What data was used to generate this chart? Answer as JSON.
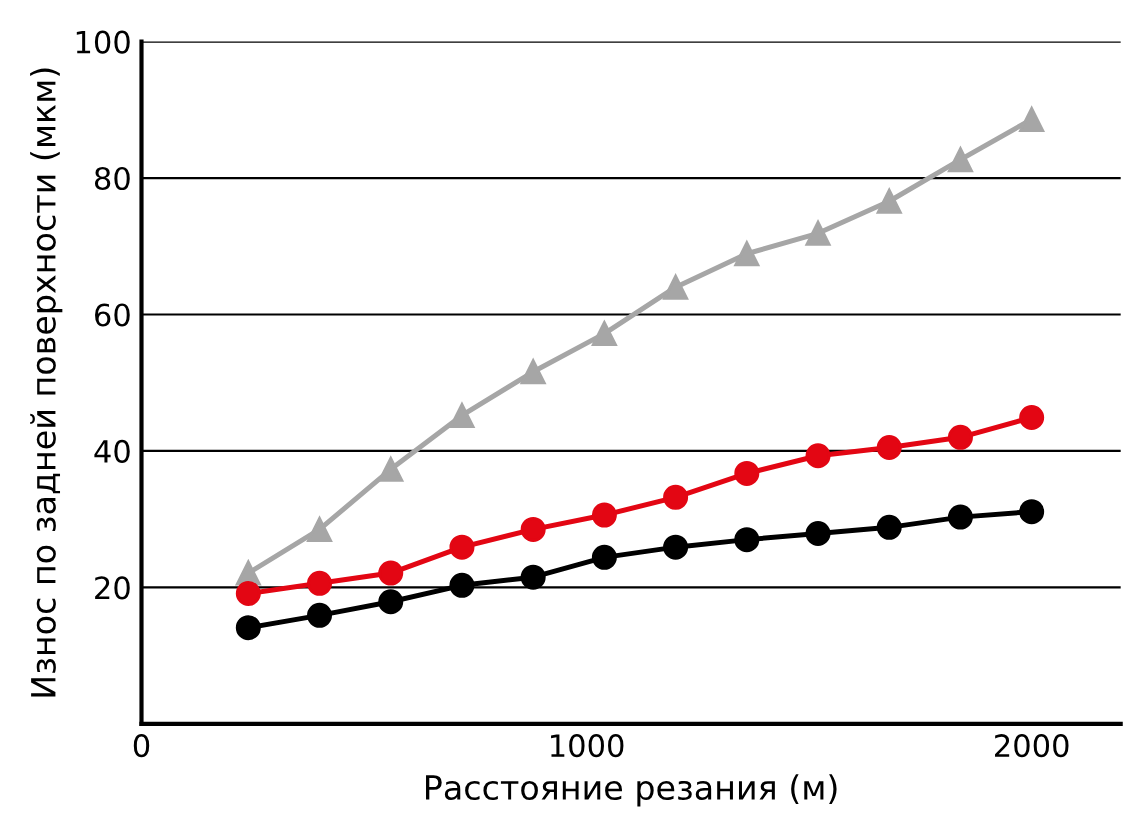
{
  "chart_data": {
    "type": "line",
    "xlabel": "Расстояние резания (м)",
    "ylabel": "Износ по задней поверхности (мкм)",
    "x": [
      240,
      400,
      560,
      720,
      880,
      1040,
      1200,
      1360,
      1520,
      1680,
      1840,
      2000
    ],
    "series": [
      {
        "color": "#a6a6a6",
        "marker": "triangle",
        "values": [
          22.1,
          28.5,
          37.3,
          45.2,
          51.6,
          57.2,
          64.0,
          68.9,
          71.9,
          76.6,
          82.7,
          88.6
        ]
      },
      {
        "color": "#e30613",
        "marker": "circle",
        "values": [
          19.1,
          20.6,
          22.1,
          25.9,
          28.5,
          30.6,
          33.2,
          36.7,
          39.3,
          40.5,
          42.0,
          44.9
        ]
      },
      {
        "color": "#000000",
        "marker": "circle",
        "values": [
          14.1,
          15.9,
          17.9,
          20.3,
          21.5,
          24.4,
          25.9,
          27.0,
          27.9,
          28.8,
          30.3,
          31.1
        ]
      }
    ],
    "xlim": [
      0,
      2200
    ],
    "xticks": [
      0,
      1000,
      2000
    ],
    "ylim": [
      0,
      100
    ],
    "yticks": [
      {
        "value": 0,
        "label": null
      },
      20,
      40,
      60,
      80,
      100
    ],
    "grid": "y",
    "line_style": "solid"
  }
}
